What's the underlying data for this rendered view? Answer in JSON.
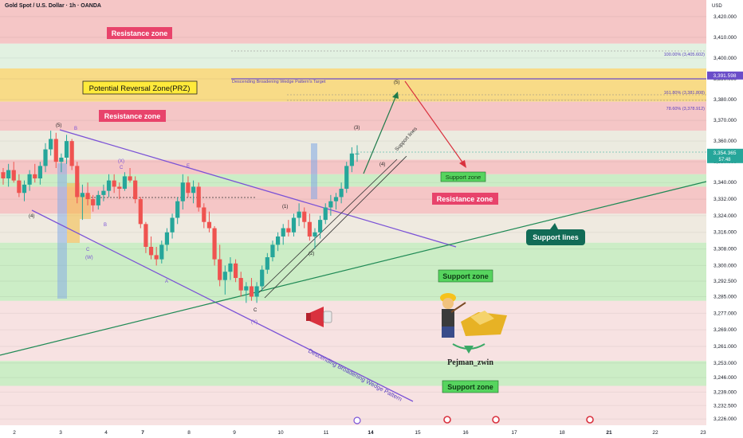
{
  "header": {
    "symbol": "Gold Spot / U.S. Dollar · 1h · OANDA",
    "currency": "USD"
  },
  "chart_data": {
    "type": "candlestick",
    "y_axis": {
      "range": [
        3223,
        3428
      ],
      "ticks": [
        "3,420.000",
        "3,410.000",
        "3,400.000",
        "3,390.000",
        "3,380.000",
        "3,370.000",
        "3,360.000",
        "3,350.000",
        "3,340.000",
        "3,332.000",
        "3,324.000",
        "3,316.000",
        "3,308.000",
        "3,300.000",
        "3,292.500",
        "3,285.000",
        "3,277.000",
        "3,269.000",
        "3,261.000",
        "3,253.000",
        "3,246.000",
        "3,239.000",
        "3,232.500",
        "3,226.000"
      ]
    },
    "x_axis": {
      "ticks": [
        "2",
        "3",
        "4",
        "7",
        "8",
        "9",
        "10",
        "11",
        "14",
        "15",
        "16",
        "17",
        "18",
        "21",
        "22",
        "23"
      ]
    },
    "price_tags": [
      {
        "value": 3391.598,
        "text": "3,391.598",
        "color": "#6a4dc9"
      },
      {
        "value": 3354.365,
        "text": "3,354.365",
        "sub": "57:48",
        "color": "#26a69a"
      }
    ],
    "zones": [
      {
        "type": "resistance",
        "from": 3407,
        "to": 3430,
        "label": "Resistance zone"
      },
      {
        "type": "prz",
        "from": 3379,
        "to": 3395,
        "label": "Potential Reversal Zone(PRZ)"
      },
      {
        "type": "resistance",
        "from": 3365,
        "to": 3379,
        "label": "Resistance zone"
      },
      {
        "type": "resistance",
        "from": 3344,
        "to": 3351,
        "label": ""
      },
      {
        "type": "support",
        "from": 3338,
        "to": 3344,
        "label": "Support zone"
      },
      {
        "type": "resistance",
        "from": 3325,
        "to": 3338,
        "label": "Resistance zone"
      },
      {
        "type": "support",
        "from": 3283,
        "to": 3311,
        "label": "Support zone"
      },
      {
        "type": "support",
        "from": 3242,
        "to": 3254,
        "label": "Support zone"
      }
    ],
    "annotations": {
      "target": "Descending Broadening Wedge Pattern's Target",
      "fib_levels": [
        "100.00% (3,405.602)",
        "161.80% (3,381.808)",
        "78.60% (3,378.912)"
      ],
      "support_lines_box": "Support lines",
      "support_lines_rot": "Support lines",
      "wedge": "Descending Broadening Wedge Pattern",
      "author": "Pejman_zwin",
      "waves": [
        "(5)",
        "B",
        "(4)",
        "(X)",
        "C",
        "B",
        "C",
        "(W)",
        "E",
        "A",
        "(Y)",
        "C",
        "(1)",
        "(2)",
        "(3)",
        "(4)",
        "(5)"
      ]
    },
    "candles": [
      [
        3345,
        3347,
        3339,
        3342
      ],
      [
        3342,
        3349,
        3338,
        3346
      ],
      [
        3346,
        3350,
        3340,
        3341
      ],
      [
        3341,
        3344,
        3333,
        3335
      ],
      [
        3335,
        3341,
        3331,
        3339
      ],
      [
        3339,
        3346,
        3336,
        3344
      ],
      [
        3344,
        3349,
        3340,
        3342
      ],
      [
        3342,
        3350,
        3339,
        3348
      ],
      [
        3348,
        3359,
        3345,
        3356
      ],
      [
        3356,
        3365,
        3353,
        3361
      ],
      [
        3361,
        3364,
        3347,
        3350
      ],
      [
        3350,
        3354,
        3345,
        3352
      ],
      [
        3352,
        3363,
        3349,
        3360
      ],
      [
        3360,
        3361,
        3346,
        3348
      ],
      [
        3348,
        3350,
        3330,
        3333
      ],
      [
        3333,
        3339,
        3322,
        3335
      ],
      [
        3335,
        3340,
        3329,
        3332
      ],
      [
        3332,
        3334,
        3326,
        3329
      ],
      [
        3329,
        3336,
        3327,
        3334
      ],
      [
        3334,
        3339,
        3331,
        3336
      ],
      [
        3336,
        3344,
        3333,
        3341
      ],
      [
        3341,
        3344,
        3335,
        3338
      ],
      [
        3338,
        3340,
        3332,
        3337
      ],
      [
        3337,
        3345,
        3336,
        3343
      ],
      [
        3343,
        3347,
        3340,
        3341
      ],
      [
        3341,
        3343,
        3330,
        3332
      ],
      [
        3332,
        3333,
        3318,
        3320
      ],
      [
        3320,
        3321,
        3306,
        3309
      ],
      [
        3309,
        3314,
        3303,
        3305
      ],
      [
        3305,
        3309,
        3300,
        3303
      ],
      [
        3303,
        3312,
        3301,
        3310
      ],
      [
        3310,
        3318,
        3307,
        3316
      ],
      [
        3316,
        3325,
        3313,
        3323
      ],
      [
        3323,
        3333,
        3320,
        3331
      ],
      [
        3331,
        3344,
        3327,
        3340
      ],
      [
        3340,
        3343,
        3333,
        3335
      ],
      [
        3335,
        3341,
        3330,
        3338
      ],
      [
        3338,
        3340,
        3326,
        3328
      ],
      [
        3328,
        3330,
        3318,
        3321
      ],
      [
        3321,
        3326,
        3316,
        3318
      ],
      [
        3318,
        3319,
        3300,
        3303
      ],
      [
        3303,
        3310,
        3290,
        3293
      ],
      [
        3293,
        3300,
        3286,
        3297
      ],
      [
        3297,
        3304,
        3293,
        3301
      ],
      [
        3301,
        3303,
        3292,
        3294
      ],
      [
        3294,
        3297,
        3285,
        3288
      ],
      [
        3288,
        3292,
        3282,
        3290
      ],
      [
        3290,
        3294,
        3283,
        3285
      ],
      [
        3285,
        3292,
        3282,
        3290
      ],
      [
        3290,
        3300,
        3288,
        3298
      ],
      [
        3298,
        3306,
        3296,
        3304
      ],
      [
        3304,
        3312,
        3302,
        3310
      ],
      [
        3310,
        3316,
        3307,
        3314
      ],
      [
        3314,
        3320,
        3310,
        3318
      ],
      [
        3318,
        3322,
        3314,
        3316
      ],
      [
        3316,
        3325,
        3314,
        3323
      ],
      [
        3323,
        3330,
        3319,
        3326
      ],
      [
        3326,
        3328,
        3318,
        3321
      ],
      [
        3321,
        3325,
        3312,
        3314
      ],
      [
        3314,
        3318,
        3308,
        3316
      ],
      [
        3316,
        3324,
        3313,
        3322
      ],
      [
        3322,
        3330,
        3320,
        3328
      ],
      [
        3328,
        3334,
        3324,
        3331
      ],
      [
        3331,
        3335,
        3327,
        3333
      ],
      [
        3333,
        3340,
        3330,
        3337
      ],
      [
        3337,
        3350,
        3335,
        3348
      ],
      [
        3348,
        3357,
        3345,
        3354
      ],
      [
        3354,
        3358,
        3350,
        3354
      ]
    ]
  }
}
